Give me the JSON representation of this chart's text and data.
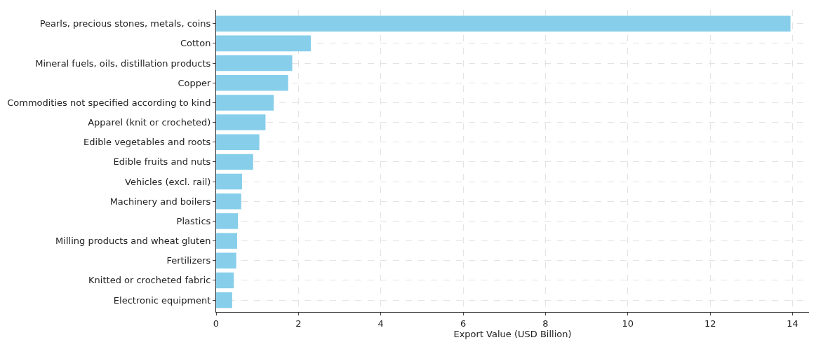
{
  "chart_data": {
    "type": "bar",
    "orientation": "horizontal",
    "xlabel": "Export Value (USD Billion)",
    "categories": [
      "Pearls, precious stones, metals, coins",
      "Cotton",
      "Mineral fuels, oils, distillation products",
      "Copper",
      "Commodities not specified according to kind",
      "Apparel (knit or crocheted)",
      "Edible vegetables and roots",
      "Edible fruits and nuts",
      "Vehicles (excl. rail)",
      "Machinery and boilers",
      "Plastics",
      "Milling products and wheat gluten",
      "Fertilizers",
      "Knitted or crocheted fabric",
      "Electronic equipment"
    ],
    "values": [
      13.95,
      2.3,
      1.85,
      1.75,
      1.4,
      1.2,
      1.05,
      0.9,
      0.63,
      0.61,
      0.53,
      0.51,
      0.49,
      0.43,
      0.39
    ],
    "color": "#87ceeb",
    "xlim": [
      0,
      14.4
    ],
    "xticks": [
      0,
      2,
      4,
      6,
      8,
      10,
      12,
      14
    ],
    "grid": true
  }
}
